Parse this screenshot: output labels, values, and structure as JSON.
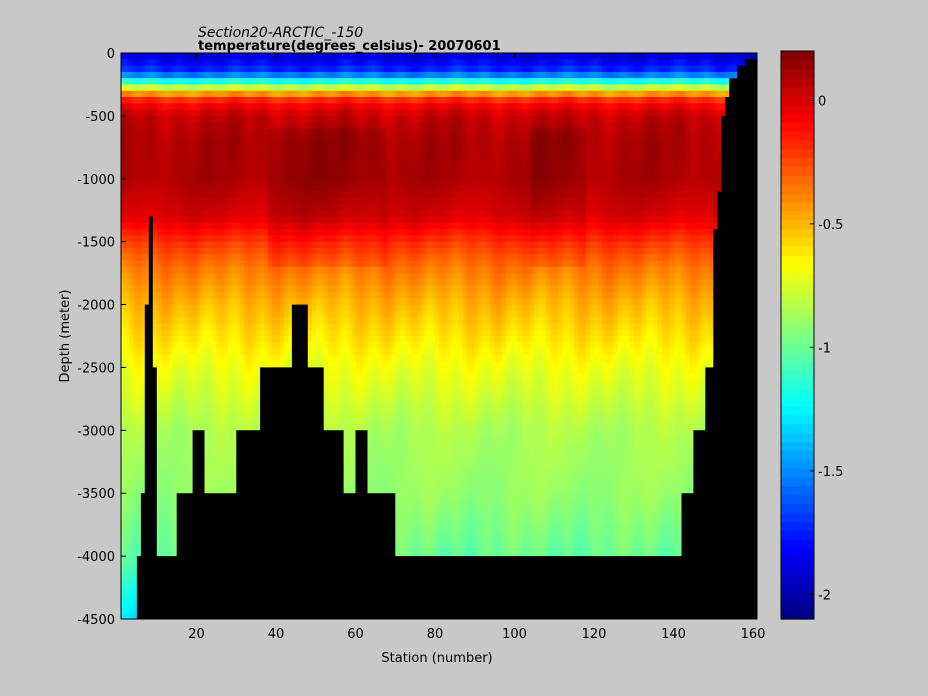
{
  "chart_data": {
    "type": "heatmap",
    "title": "Section20-ARCTIC_-150",
    "subtitle": "temperature(degrees_celsius)- 20070601",
    "xlabel": "Station (number)",
    "ylabel": "Depth (meter)",
    "xlim": [
      1,
      161
    ],
    "ylim": [
      -4500,
      0
    ],
    "xticks": [
      20,
      40,
      60,
      80,
      100,
      120,
      140,
      160
    ],
    "yticks": [
      0,
      -500,
      -1000,
      -1500,
      -2000,
      -2500,
      -3000,
      -3500,
      -4000,
      -4500
    ],
    "colorbar": {
      "range": [
        -2.1,
        0.2
      ],
      "ticks": [
        0,
        -0.5,
        -1,
        -1.5,
        -2
      ],
      "colormap": "jet"
    },
    "missing_color": "#000000",
    "bottom_profile": [
      [
        1,
        -4500
      ],
      [
        2,
        -4500
      ],
      [
        4,
        -4500
      ],
      [
        5,
        -4000
      ],
      [
        6,
        -3500
      ],
      [
        7,
        -2000
      ],
      [
        8,
        -1300
      ],
      [
        9,
        -2500
      ],
      [
        10,
        -4000
      ],
      [
        15,
        -3500
      ],
      [
        19,
        -3000
      ],
      [
        22,
        -3500
      ],
      [
        30,
        -3000
      ],
      [
        36,
        -2500
      ],
      [
        44,
        -2000
      ],
      [
        48,
        -2500
      ],
      [
        52,
        -3000
      ],
      [
        57,
        -3500
      ],
      [
        60,
        -3000
      ],
      [
        63,
        -3500
      ],
      [
        70,
        -4000
      ],
      [
        104,
        -4000
      ],
      [
        138,
        -4000
      ],
      [
        142,
        -3500
      ],
      [
        145,
        -3000
      ],
      [
        148,
        -2500
      ],
      [
        150,
        -1400
      ],
      [
        151,
        -1100
      ],
      [
        152,
        -500
      ],
      [
        153,
        -350
      ],
      [
        154,
        -200
      ],
      [
        156,
        -100
      ],
      [
        158,
        -50
      ],
      [
        161,
        0
      ]
    ],
    "profile": [
      [
        0,
        -1.95
      ],
      [
        50,
        -1.85
      ],
      [
        150,
        -1.7
      ],
      [
        200,
        -1.35
      ],
      [
        250,
        -1.0
      ],
      [
        300,
        -0.6
      ],
      [
        350,
        -0.25
      ],
      [
        400,
        -0.1
      ],
      [
        500,
        0.05
      ],
      [
        700,
        0.1
      ],
      [
        1000,
        0.1
      ],
      [
        1300,
        0.0
      ],
      [
        1500,
        -0.2
      ],
      [
        1700,
        -0.35
      ],
      [
        2000,
        -0.5
      ],
      [
        2500,
        -0.7
      ],
      [
        3000,
        -0.85
      ],
      [
        3500,
        -0.9
      ],
      [
        4000,
        -1.0
      ],
      [
        4500,
        -1.3
      ]
    ]
  }
}
